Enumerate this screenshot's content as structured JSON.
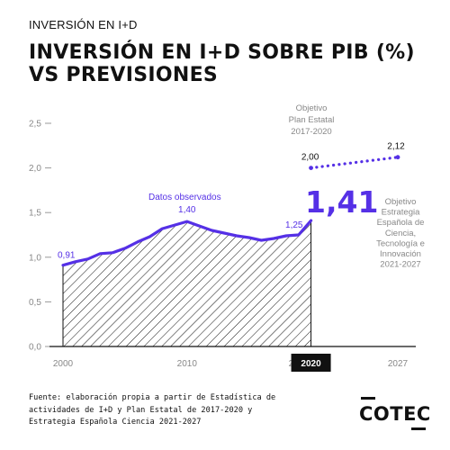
{
  "header": {
    "kicker": "INVERSIÓN EN I+D",
    "title_line1": "INVERSIÓN EN I+D SOBRE PIB (%)",
    "title_line2": "VS PREVISIONES"
  },
  "colors": {
    "accent": "#5530e6",
    "text": "#111111",
    "axis": "#999999",
    "hatch": "#111111",
    "highlight_bg": "#111111"
  },
  "chart_data": {
    "type": "line",
    "title": "INVERSIÓN EN I+D SOBRE PIB (%) VS PREVISIONES",
    "xlabel": "",
    "ylabel": "",
    "xlim": [
      2000,
      2027
    ],
    "ylim": [
      0,
      2.5
    ],
    "grid": false,
    "y_ticks": [
      {
        "value": 0,
        "label": "0,0"
      },
      {
        "value": 0.5,
        "label": "0,5"
      },
      {
        "value": 1.0,
        "label": "1,0"
      },
      {
        "value": 1.5,
        "label": "1,5"
      },
      {
        "value": 2.0,
        "label": "2,0"
      },
      {
        "value": 2.5,
        "label": "2,5"
      }
    ],
    "x_ticks": [
      {
        "value": 2000,
        "label": "2000",
        "highlight": false
      },
      {
        "value": 2010,
        "label": "2010",
        "highlight": false
      },
      {
        "value": 2019,
        "label": "2019",
        "highlight": false
      },
      {
        "value": 2020,
        "label": "2020",
        "highlight": true
      },
      {
        "value": 2027,
        "label": "2027",
        "highlight": false
      }
    ],
    "series": [
      {
        "name": "Datos observados",
        "style": "solid-hatched-area",
        "x": [
          2000,
          2001,
          2002,
          2003,
          2004,
          2005,
          2006,
          2007,
          2008,
          2009,
          2010,
          2011,
          2012,
          2013,
          2014,
          2015,
          2016,
          2017,
          2018,
          2019,
          2020
        ],
        "y": [
          0.91,
          0.95,
          0.98,
          1.04,
          1.05,
          1.1,
          1.17,
          1.23,
          1.32,
          1.36,
          1.4,
          1.35,
          1.3,
          1.27,
          1.24,
          1.22,
          1.19,
          1.21,
          1.24,
          1.25,
          1.41
        ]
      },
      {
        "name": "",
        "style": "dotted",
        "x": [
          2020,
          2027
        ],
        "y": [
          2.0,
          2.12
        ]
      }
    ],
    "annotations": {
      "start": {
        "x": 2000,
        "y": 0.91,
        "label": "0,91"
      },
      "peak": {
        "x": 2010,
        "y": 1.4,
        "label": "1,40"
      },
      "pre_last": {
        "x": 2019,
        "y": 1.25,
        "label": "1,25"
      },
      "big_value": {
        "x": 2020,
        "y": 1.41,
        "label": "1,41"
      },
      "target_start": {
        "x": 2020,
        "y": 2.0,
        "label": "2,00"
      },
      "target_end": {
        "x": 2027,
        "y": 2.12,
        "label": "2,12"
      },
      "series_label": "Datos observados",
      "target_label_1": [
        "Objetivo",
        "Plan Estatal",
        "2017-2020"
      ],
      "target_label_2": [
        "Objetivo",
        "Estrategia",
        "Española de",
        "Ciencia,",
        "Tecnología e",
        "Innovación",
        "2021-2027"
      ]
    }
  },
  "footer": {
    "source_lines": [
      "Fuente: elaboración propia a partir de Estadística de",
      "actividades de I+D y Plan Estatal de 2017-2020 y",
      "Estrategia Española Ciencia 2021-2027"
    ],
    "logo_text": "COTEC"
  }
}
